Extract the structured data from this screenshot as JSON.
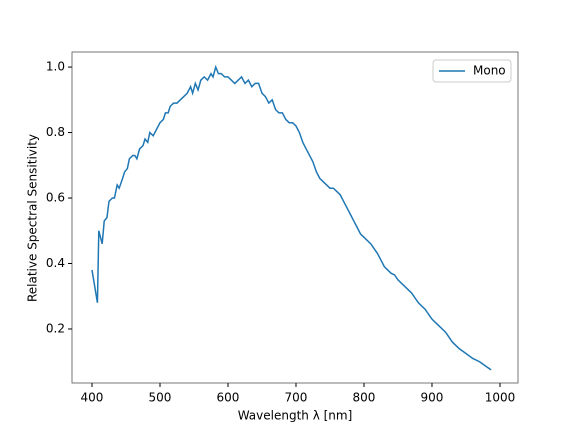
{
  "chart_data": {
    "type": "line",
    "x_label": "Wavelength λ [nm]",
    "y_label": "Relative Spectral Sensitivity",
    "x": [
      400,
      408,
      410,
      415,
      418,
      422,
      425,
      430,
      433,
      437,
      440,
      445,
      448,
      452,
      455,
      460,
      463,
      466,
      470,
      475,
      478,
      482,
      485,
      490,
      495,
      500,
      505,
      508,
      512,
      515,
      520,
      525,
      530,
      535,
      540,
      545,
      548,
      552,
      556,
      560,
      565,
      570,
      575,
      578,
      582,
      586,
      590,
      595,
      600,
      605,
      610,
      615,
      620,
      625,
      630,
      635,
      640,
      645,
      650,
      655,
      660,
      665,
      670,
      675,
      680,
      685,
      690,
      695,
      700,
      705,
      710,
      715,
      720,
      725,
      730,
      735,
      740,
      745,
      750,
      755,
      760,
      765,
      770,
      775,
      780,
      785,
      790,
      795,
      800,
      810,
      820,
      830,
      840,
      845,
      850,
      860,
      870,
      880,
      890,
      900,
      910,
      920,
      930,
      940,
      950,
      960,
      970,
      980,
      987
    ],
    "series": [
      {
        "name": "Mono",
        "color": "#1f77b4",
        "values": [
          0.38,
          0.28,
          0.5,
          0.46,
          0.53,
          0.54,
          0.59,
          0.6,
          0.6,
          0.64,
          0.63,
          0.66,
          0.68,
          0.69,
          0.72,
          0.73,
          0.73,
          0.72,
          0.75,
          0.76,
          0.78,
          0.77,
          0.8,
          0.79,
          0.81,
          0.83,
          0.84,
          0.86,
          0.86,
          0.88,
          0.89,
          0.89,
          0.9,
          0.91,
          0.92,
          0.94,
          0.92,
          0.95,
          0.93,
          0.96,
          0.97,
          0.96,
          0.98,
          0.97,
          1.0,
          0.98,
          0.98,
          0.97,
          0.97,
          0.96,
          0.95,
          0.96,
          0.97,
          0.95,
          0.96,
          0.94,
          0.95,
          0.95,
          0.92,
          0.91,
          0.89,
          0.9,
          0.87,
          0.86,
          0.86,
          0.84,
          0.83,
          0.83,
          0.82,
          0.8,
          0.77,
          0.75,
          0.73,
          0.71,
          0.68,
          0.66,
          0.65,
          0.64,
          0.63,
          0.63,
          0.62,
          0.61,
          0.59,
          0.57,
          0.55,
          0.53,
          0.51,
          0.49,
          0.48,
          0.46,
          0.43,
          0.39,
          0.37,
          0.365,
          0.35,
          0.33,
          0.31,
          0.28,
          0.26,
          0.23,
          0.21,
          0.19,
          0.16,
          0.14,
          0.125,
          0.11,
          0.1,
          0.085,
          0.075
        ]
      }
    ],
    "xlim": [
      370.6,
      1026.5
    ],
    "ylim": [
      0.035,
      1.046
    ],
    "xticks": [
      400,
      500,
      600,
      700,
      800,
      900,
      1000
    ],
    "yticks": [
      0.2,
      0.4,
      0.6,
      0.8,
      {
        "value": 1,
        "label": "1.0"
      }
    ],
    "legend": "upper right"
  }
}
